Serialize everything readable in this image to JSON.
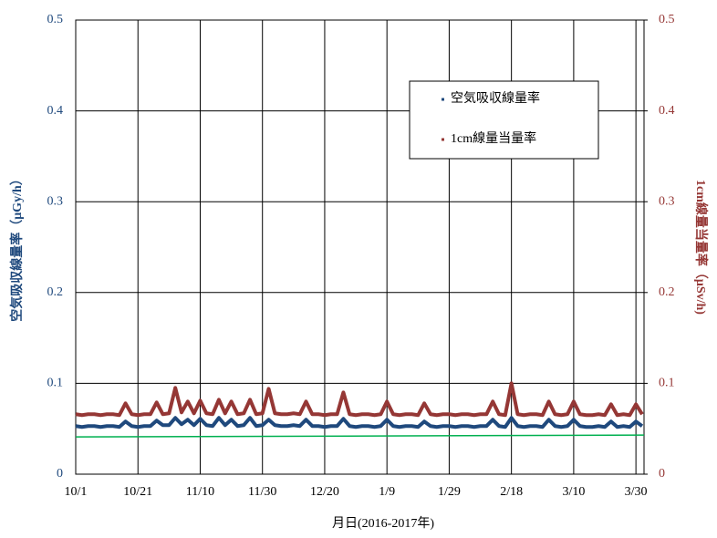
{
  "chart_data": {
    "type": "line",
    "x_label": "月日(2016-2017年)",
    "y_label": "空気吸収線量率（μGy/h）",
    "y2_label": "1cm線量当量率（μSv/h)",
    "xlim": [
      0,
      182.6
    ],
    "xticks": [
      {
        "value": 0,
        "label": "10/1"
      },
      {
        "value": 20,
        "label": "10/21"
      },
      {
        "value": 40,
        "label": "11/10"
      },
      {
        "value": 60,
        "label": "11/30"
      },
      {
        "value": 80,
        "label": "12/20"
      },
      {
        "value": 100,
        "label": "1/9"
      },
      {
        "value": 120,
        "label": "1/29"
      },
      {
        "value": 140,
        "label": "2/18"
      },
      {
        "value": 160,
        "label": "3/10"
      },
      {
        "value": 180,
        "label": "3/30"
      }
    ],
    "ylim": [
      0,
      0.5
    ],
    "yticks": [
      0,
      0.1,
      0.2,
      0.3,
      0.4,
      0.5
    ],
    "y2lim": [
      0,
      0.5
    ],
    "y2ticks": [
      0,
      0.1,
      0.2,
      0.3,
      0.4,
      0.5
    ],
    "grid": true,
    "legend": "upper right",
    "x": [
      0,
      2,
      4,
      6,
      8,
      10,
      12,
      14,
      16,
      18,
      20,
      22,
      24,
      26,
      28,
      30,
      32,
      34,
      36,
      38,
      40,
      42,
      44,
      46,
      48,
      50,
      52,
      54,
      56,
      58,
      60,
      62,
      64,
      66,
      68,
      70,
      72,
      74,
      76,
      78,
      80,
      82,
      84,
      86,
      88,
      90,
      92,
      94,
      96,
      98,
      100,
      102,
      104,
      106,
      108,
      110,
      112,
      114,
      116,
      118,
      120,
      122,
      124,
      126,
      128,
      130,
      132,
      134,
      136,
      138,
      140,
      142,
      144,
      146,
      148,
      150,
      152,
      154,
      156,
      158,
      160,
      162,
      164,
      166,
      168,
      170,
      172,
      174,
      176,
      178,
      180,
      182
    ],
    "series": [
      {
        "name": "空気吸収線量率",
        "color": "#1f497d",
        "axis": "y",
        "values": [
          0.053,
          0.052,
          0.053,
          0.053,
          0.052,
          0.053,
          0.053,
          0.052,
          0.058,
          0.053,
          0.052,
          0.053,
          0.053,
          0.059,
          0.054,
          0.054,
          0.062,
          0.055,
          0.06,
          0.054,
          0.061,
          0.054,
          0.053,
          0.062,
          0.054,
          0.06,
          0.053,
          0.054,
          0.062,
          0.053,
          0.054,
          0.06,
          0.054,
          0.053,
          0.053,
          0.054,
          0.053,
          0.06,
          0.053,
          0.053,
          0.052,
          0.053,
          0.053,
          0.061,
          0.053,
          0.052,
          0.053,
          0.053,
          0.052,
          0.053,
          0.06,
          0.053,
          0.052,
          0.053,
          0.053,
          0.052,
          0.058,
          0.053,
          0.052,
          0.053,
          0.053,
          0.052,
          0.053,
          0.053,
          0.052,
          0.053,
          0.053,
          0.06,
          0.053,
          0.052,
          0.062,
          0.053,
          0.052,
          0.053,
          0.053,
          0.052,
          0.06,
          0.053,
          0.052,
          0.053,
          0.06,
          0.053,
          0.052,
          0.052,
          0.053,
          0.052,
          0.058,
          0.052,
          0.053,
          0.052,
          0.058,
          0.053
        ]
      },
      {
        "name": "1cm線量当量率",
        "color": "#953735",
        "axis": "y2",
        "values": [
          0.066,
          0.065,
          0.066,
          0.066,
          0.065,
          0.066,
          0.066,
          0.065,
          0.078,
          0.066,
          0.065,
          0.066,
          0.066,
          0.079,
          0.066,
          0.067,
          0.095,
          0.068,
          0.08,
          0.067,
          0.081,
          0.067,
          0.066,
          0.082,
          0.067,
          0.08,
          0.066,
          0.067,
          0.082,
          0.066,
          0.067,
          0.094,
          0.067,
          0.066,
          0.066,
          0.067,
          0.066,
          0.08,
          0.066,
          0.066,
          0.065,
          0.066,
          0.066,
          0.09,
          0.066,
          0.065,
          0.066,
          0.066,
          0.065,
          0.066,
          0.08,
          0.066,
          0.065,
          0.066,
          0.066,
          0.065,
          0.078,
          0.066,
          0.065,
          0.066,
          0.066,
          0.065,
          0.066,
          0.066,
          0.065,
          0.066,
          0.066,
          0.08,
          0.066,
          0.065,
          0.1,
          0.066,
          0.065,
          0.066,
          0.066,
          0.065,
          0.08,
          0.066,
          0.065,
          0.066,
          0.08,
          0.066,
          0.065,
          0.065,
          0.066,
          0.065,
          0.077,
          0.065,
          0.066,
          0.065,
          0.077,
          0.066
        ]
      },
      {
        "color": "#00b050",
        "axis": "y",
        "x": [
          0,
          182.6
        ],
        "values": [
          0.041,
          0.043
        ]
      }
    ]
  }
}
